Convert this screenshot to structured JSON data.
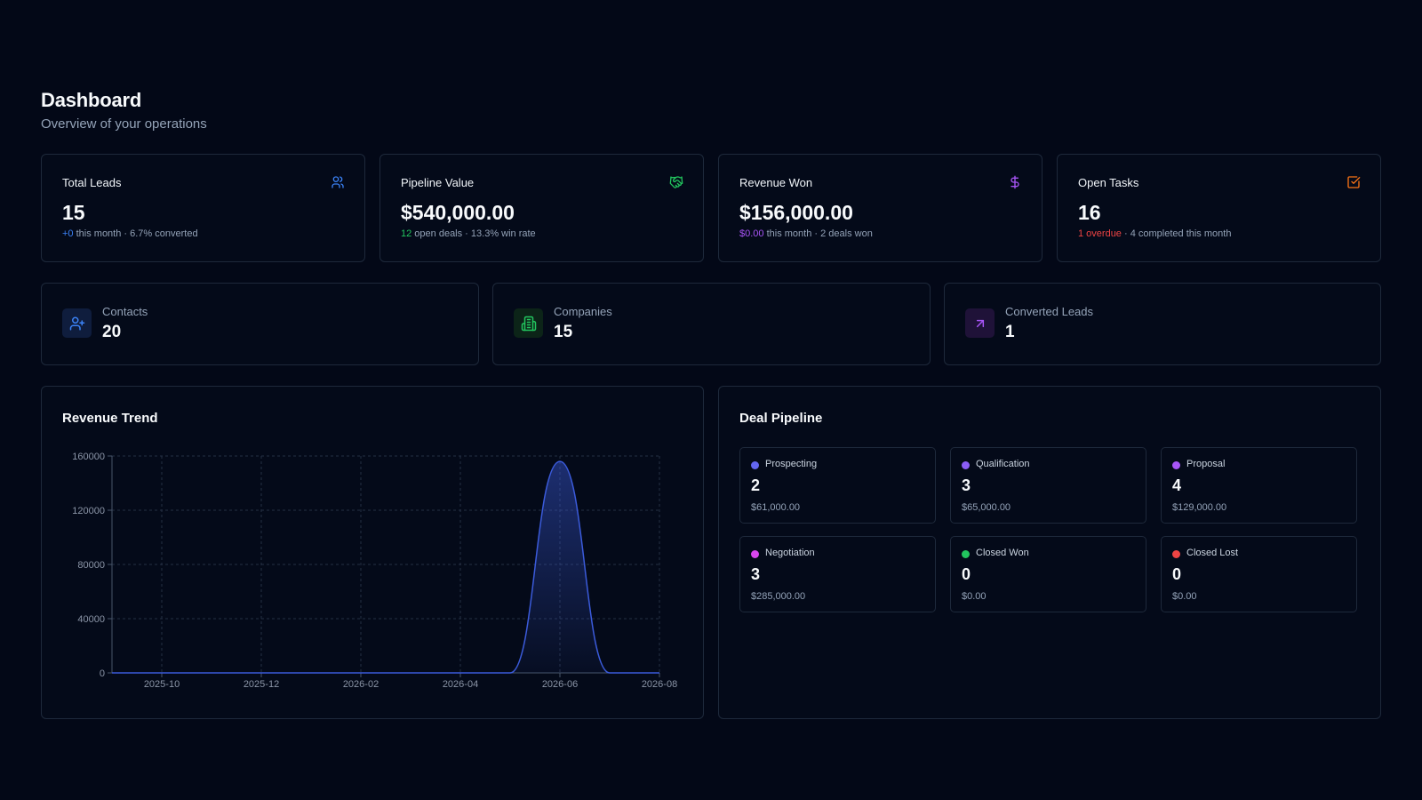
{
  "header": {
    "title": "Dashboard",
    "subtitle": "Overview of your operations"
  },
  "stats": [
    {
      "title": "Total Leads",
      "icon": "users-icon",
      "value": "15",
      "highlight": "+0",
      "highlight_color": "#3b82f6",
      "rest": " this month · 6.7% converted"
    },
    {
      "title": "Pipeline Value",
      "icon": "handshake-icon",
      "value": "$540,000.00",
      "highlight": "12",
      "highlight_color": "#22c55e",
      "rest": " open deals · 13.3% win rate"
    },
    {
      "title": "Revenue Won",
      "icon": "dollar-icon",
      "value": "$156,000.00",
      "highlight": "$0.00",
      "highlight_color": "#a855f7",
      "rest": " this month · 2 deals won"
    },
    {
      "title": "Open Tasks",
      "icon": "checkbox-icon",
      "value": "16",
      "highlight": "1 overdue",
      "highlight_color": "#ef4444",
      "rest": " · 4 completed this month"
    }
  ],
  "summary": [
    {
      "label": "Contacts",
      "value": "20",
      "icon": "user-plus-icon",
      "color": "#3b82f6"
    },
    {
      "label": "Companies",
      "value": "15",
      "icon": "building-icon",
      "color": "#22c55e"
    },
    {
      "label": "Converted Leads",
      "value": "1",
      "icon": "arrow-up-right-icon",
      "color": "#a855f7"
    }
  ],
  "revenue_panel": {
    "title": "Revenue Trend"
  },
  "chart_data": {
    "type": "area",
    "title": "Revenue Trend",
    "x_ticks": [
      "2025-10",
      "2025-12",
      "2026-02",
      "2026-04",
      "2026-06",
      "2026-08"
    ],
    "x": [
      "2025-09",
      "2025-10",
      "2025-11",
      "2025-12",
      "2026-01",
      "2026-02",
      "2026-03",
      "2026-04",
      "2026-05",
      "2026-06",
      "2026-07",
      "2026-08"
    ],
    "y": [
      0,
      0,
      0,
      0,
      0,
      0,
      0,
      0,
      0,
      156000,
      0,
      0
    ],
    "ylim": [
      0,
      160000
    ],
    "y_ticks": [
      0,
      40000,
      80000,
      120000,
      160000
    ],
    "grid": true,
    "color": "#3b5bdb"
  },
  "pipeline_panel": {
    "title": "Deal Pipeline",
    "stages": [
      {
        "name": "Prospecting",
        "count": "2",
        "amount": "$61,000.00",
        "color": "#6366f1"
      },
      {
        "name": "Qualification",
        "count": "3",
        "amount": "$65,000.00",
        "color": "#8b5cf6"
      },
      {
        "name": "Proposal",
        "count": "4",
        "amount": "$129,000.00",
        "color": "#a855f7"
      },
      {
        "name": "Negotiation",
        "count": "3",
        "amount": "$285,000.00",
        "color": "#d946ef"
      },
      {
        "name": "Closed Won",
        "count": "0",
        "amount": "$0.00",
        "color": "#22c55e"
      },
      {
        "name": "Closed Lost",
        "count": "0",
        "amount": "$0.00",
        "color": "#ef4444"
      }
    ]
  }
}
